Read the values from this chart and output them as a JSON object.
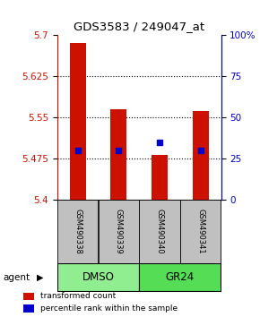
{
  "title": "GDS3583 / 249047_at",
  "samples": [
    "GSM490338",
    "GSM490339",
    "GSM490340",
    "GSM490341"
  ],
  "red_bar_tops": [
    5.685,
    5.565,
    5.482,
    5.562
  ],
  "red_bar_base": 5.4,
  "blue_dot_percentiles": [
    30,
    30,
    35,
    30
  ],
  "ylim_left": [
    5.4,
    5.7
  ],
  "ylim_right": [
    0,
    100
  ],
  "yticks_left": [
    5.4,
    5.475,
    5.55,
    5.625,
    5.7
  ],
  "ytick_labels_left": [
    "5.4",
    "5.475",
    "5.55",
    "5.625",
    "5.7"
  ],
  "yticks_right": [
    0,
    25,
    50,
    75,
    100
  ],
  "ytick_labels_right": [
    "0",
    "25",
    "50",
    "75",
    "100%"
  ],
  "group_info": [
    [
      0,
      1,
      "DMSO",
      "#90EE90"
    ],
    [
      2,
      3,
      "GR24",
      "#55DD55"
    ]
  ],
  "bar_color": "#CC1100",
  "dot_color": "#0000CC",
  "sample_box_color": "#C0C0C0",
  "left_axis_color": "#CC1100",
  "right_axis_color": "#0000CC",
  "agent_label": "agent",
  "legend_items": [
    {
      "color": "#CC1100",
      "label": "transformed count"
    },
    {
      "color": "#0000CC",
      "label": "percentile rank within the sample"
    }
  ]
}
